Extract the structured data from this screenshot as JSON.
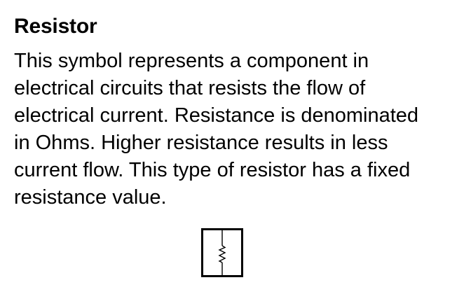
{
  "component": {
    "title": "Resistor",
    "description_lines": [
      "This symbol represents a component in",
      "electrical circuits that resists the flow of",
      "electrical current. Resistance is denominated",
      "in Ohms. Higher resistance results in less",
      "current flow. This type of resistor has a fixed",
      "resistance value."
    ],
    "symbol_icon": "resistor-symbol-icon"
  }
}
